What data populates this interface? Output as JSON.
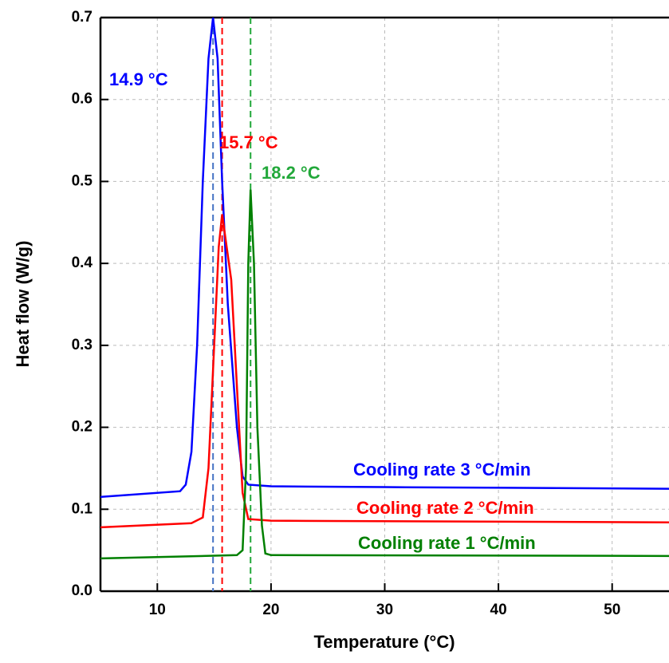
{
  "chart_data": {
    "type": "line",
    "xlabel": "Temperature (°C)",
    "ylabel": "Heat flow (W/g)",
    "xlim": [
      5,
      55
    ],
    "ylim": [
      0,
      0.7
    ],
    "xticks": [
      10,
      20,
      30,
      40,
      50
    ],
    "yticks": [
      {
        "value": 0,
        "label": "0.0"
      },
      0.1,
      0.2,
      0.3,
      0.4,
      0.5,
      0.6,
      0.7
    ],
    "grid": true,
    "series": [
      {
        "name": "Cooling rate 3 °C/min",
        "color": "#0000ff",
        "x": [
          5,
          12,
          12.5,
          13,
          13.5,
          14,
          14.5,
          14.9,
          15.3,
          15.7,
          16.2,
          17,
          17.5,
          18,
          20,
          30,
          55
        ],
        "values": [
          0.115,
          0.122,
          0.13,
          0.17,
          0.3,
          0.5,
          0.65,
          0.7,
          0.65,
          0.5,
          0.35,
          0.2,
          0.14,
          0.13,
          0.128,
          0.127,
          0.125
        ]
      },
      {
        "name": "Cooling rate 2 °C/min",
        "color": "#ff0000",
        "x": [
          5,
          13,
          14,
          14.5,
          15,
          15.4,
          15.7,
          16,
          16.5,
          17,
          17.5,
          18,
          20,
          55
        ],
        "values": [
          0.078,
          0.083,
          0.09,
          0.15,
          0.3,
          0.42,
          0.46,
          0.43,
          0.38,
          0.25,
          0.12,
          0.088,
          0.086,
          0.084
        ]
      },
      {
        "name": "Cooling rate 1 °C/min",
        "color": "#008000",
        "x": [
          5,
          17,
          17.5,
          17.8,
          18,
          18.2,
          18.5,
          18.8,
          19.2,
          19.5,
          20,
          55
        ],
        "values": [
          0.04,
          0.044,
          0.05,
          0.15,
          0.4,
          0.49,
          0.4,
          0.2,
          0.08,
          0.046,
          0.044,
          0.043
        ]
      }
    ],
    "markers": [
      {
        "x": 14.9,
        "label": "14.9 °C",
        "color": "#0000ff",
        "line_color": "#4472c4"
      },
      {
        "x": 15.7,
        "label": "15.7 °C",
        "color": "#ff0000",
        "line_color": "#ff0000"
      },
      {
        "x": 18.2,
        "label": "18.2 °C",
        "color": "#22a83a",
        "line_color": "#22a83a"
      }
    ]
  }
}
